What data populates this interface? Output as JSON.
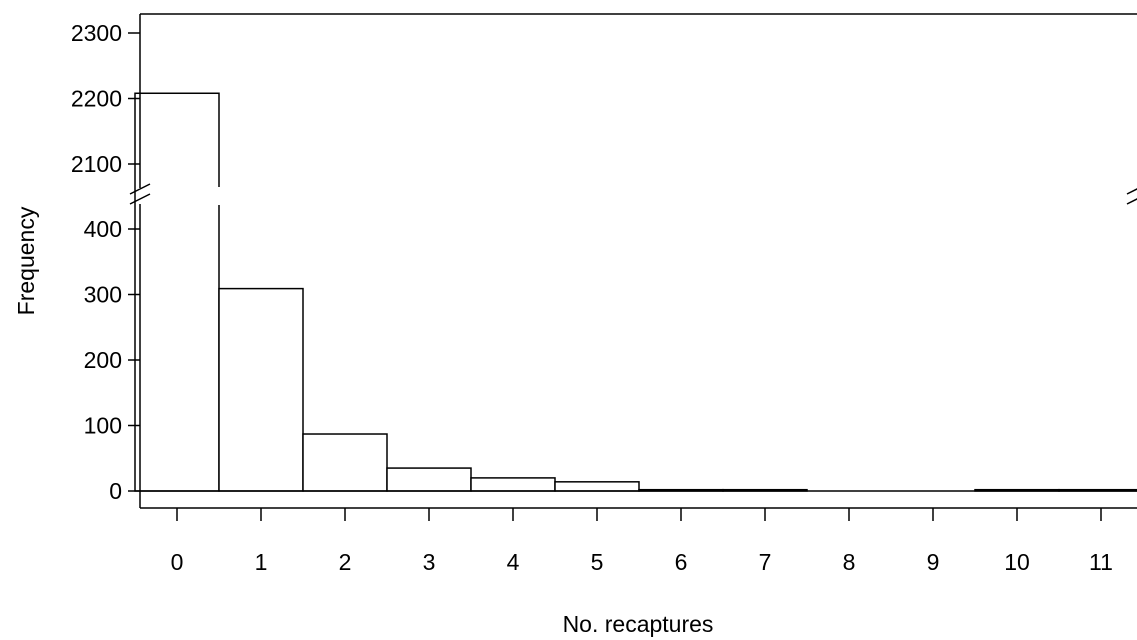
{
  "chart_data": {
    "type": "bar",
    "xlabel": "No. recaptures",
    "ylabel": "Frequency",
    "categories": [
      "0",
      "1",
      "2",
      "3",
      "4",
      "5",
      "6",
      "7",
      "8",
      "9",
      "10",
      "11"
    ],
    "values": [
      2208,
      309,
      87,
      35,
      20,
      14,
      2,
      2,
      0,
      0,
      2,
      2
    ],
    "y_axis_break": true,
    "ylim_lower_segment": [
      0,
      400
    ],
    "ylim_upper_segment": [
      2100,
      2300
    ],
    "yticks_lower": [
      0,
      100,
      200,
      300,
      400
    ],
    "yticks_upper": [
      2100,
      2200,
      2300
    ],
    "grid": false,
    "legend": "none"
  }
}
